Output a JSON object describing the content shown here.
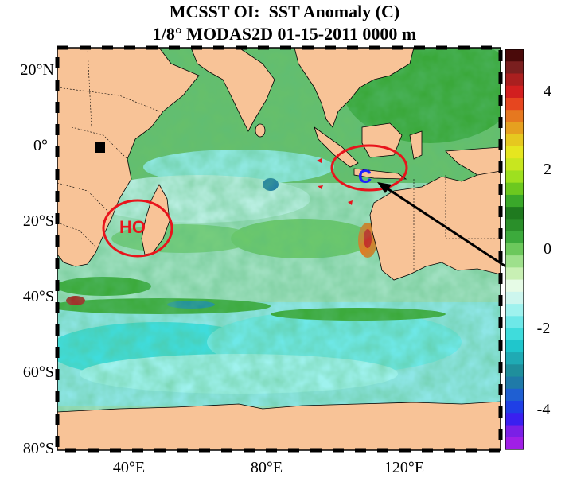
{
  "title": "MCSST OI:  SST Anomaly (C)",
  "subtitle": "1/8° MODAS2D 01-15-2011 0000 m",
  "map": {
    "lat_labels": [
      "20°N",
      "0°",
      "20°S",
      "40°S",
      "60°S",
      "80°S"
    ],
    "lon_labels": [
      "40°E",
      "80°E",
      "120°E"
    ],
    "land_color": "#f8c397",
    "annotations": [
      {
        "label": "HO",
        "color": "#e8141c"
      },
      {
        "label": "C",
        "color": "#1e1eff"
      }
    ]
  },
  "colorbar": {
    "tick_labels": [
      "4",
      "2",
      "0",
      "-2",
      "-4"
    ],
    "range": [
      -5,
      5
    ],
    "colors": [
      "#a01fe6",
      "#7a1fe6",
      "#3a1ff0",
      "#1f3fe6",
      "#1f5fd2",
      "#1f7aa8",
      "#1f8f9c",
      "#1faab4",
      "#1fc6cc",
      "#3fdcdc",
      "#6ee8e8",
      "#9ff2ee",
      "#cdf6ee",
      "#e6fbe6",
      "#c8f0b4",
      "#9ee08c",
      "#6cc85c",
      "#3caa3c",
      "#2a8f2a",
      "#1f7a1f",
      "#3aa82a",
      "#6cc81f",
      "#9ee01f",
      "#c8e61f",
      "#e6e61f",
      "#e6c81f",
      "#e6a01f",
      "#e6781f",
      "#e6461f",
      "#d21f1f",
      "#aa1f1f",
      "#7a1f1f",
      "#4a0a0a"
    ]
  }
}
